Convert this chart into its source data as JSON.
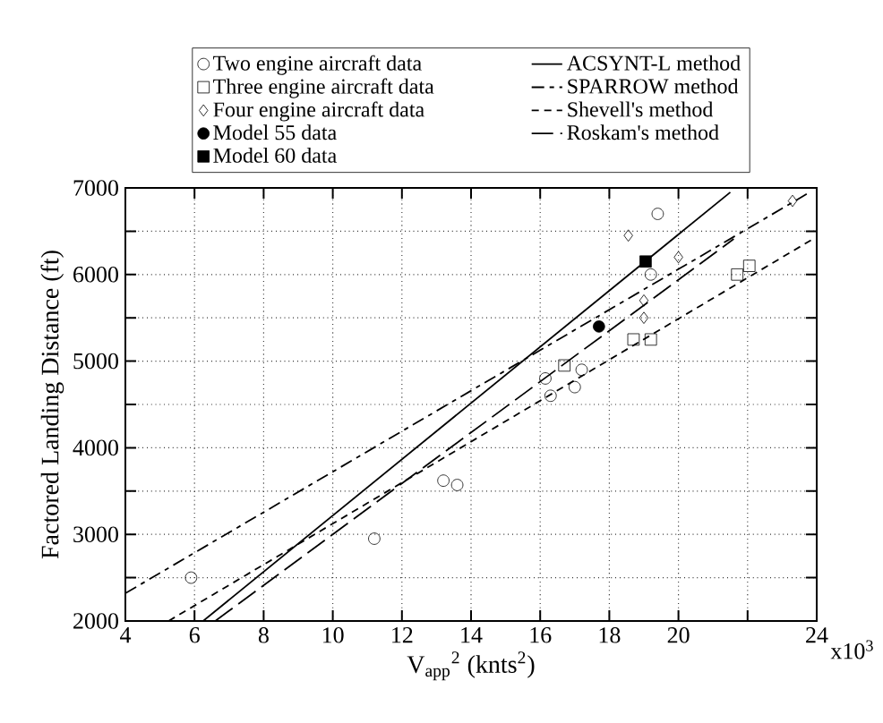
{
  "chart_data": {
    "type": "scatter",
    "xlabel": "V$_{app}$$^{2}$ (knts$^{2}$)",
    "ylabel": "Factored Landing Distance (ft)",
    "annotations": [
      "x10$^{3}$"
    ],
    "xlim": [
      4,
      24
    ],
    "xticks": [
      4,
      6,
      8,
      10,
      12,
      14,
      16,
      18,
      20,
      {
        "value": 22,
        "label": null
      },
      24
    ],
    "ylim": [
      2000,
      7000
    ],
    "yticks": [
      2000,
      {
        "value": 2500,
        "label": null
      },
      3000,
      {
        "value": 3500,
        "label": null
      },
      4000,
      {
        "value": 4500,
        "label": null
      },
      5000,
      {
        "value": 5500,
        "label": null
      },
      6000,
      {
        "value": 6500,
        "label": null
      },
      7000
    ],
    "grid": true,
    "legend": "top",
    "series": [
      {
        "name": "Two engine aircraft data",
        "marker": "circle",
        "color": "#000000",
        "x": [
          5.9,
          11.2,
          13.2,
          13.6,
          16.15,
          16.3,
          17.0,
          17.2,
          19.2,
          19.4
        ],
        "values": [
          2500,
          2950,
          3620,
          3570,
          4800,
          4600,
          4700,
          4900,
          6000,
          6700
        ]
      },
      {
        "name": "Three engine aircraft data",
        "marker": "square",
        "color": "#000000",
        "x": [
          16.7,
          18.7,
          19.2,
          21.7,
          22.05
        ],
        "values": [
          4950,
          5250,
          5250,
          6000,
          6100
        ]
      },
      {
        "name": "Four engine aircraft data",
        "marker": "diamond",
        "color": "#000000",
        "x": [
          18.55,
          19.0,
          19.0,
          20.0,
          23.3
        ],
        "values": [
          6450,
          5700,
          5500,
          6200,
          6850
        ]
      },
      {
        "name": "Model 55 data",
        "marker": "circle",
        "color": "#000000",
        "x": [
          17.7
        ],
        "values": [
          5400
        ]
      },
      {
        "name": "Model 60 data",
        "marker": "square",
        "color": "#000000",
        "x": [
          19.05
        ],
        "values": [
          6150
        ]
      },
      {
        "name": "ACSYNT-L method",
        "type": "line",
        "line_style": "solid",
        "color": "#000000",
        "x": [
          6.25,
          21.5
        ],
        "values": [
          2000,
          6950
        ]
      },
      {
        "name": "SPARROW method",
        "type": "line",
        "line_style": "dashed",
        "color": "#000000",
        "x": [
          4,
          23.8
        ],
        "values": [
          2320,
          6950
        ]
      },
      {
        "name": "Shevell's method",
        "type": "line",
        "line_style": "dotted",
        "color": "#000000",
        "x": [
          5.25,
          23.85
        ],
        "values": [
          2000,
          6400
        ]
      },
      {
        "name": "Roskam's method",
        "type": "line",
        "line_style": "dashed",
        "color": "#000000",
        "x": [
          6.6,
          21.6
        ],
        "values": [
          2000,
          6410
        ]
      }
    ]
  }
}
